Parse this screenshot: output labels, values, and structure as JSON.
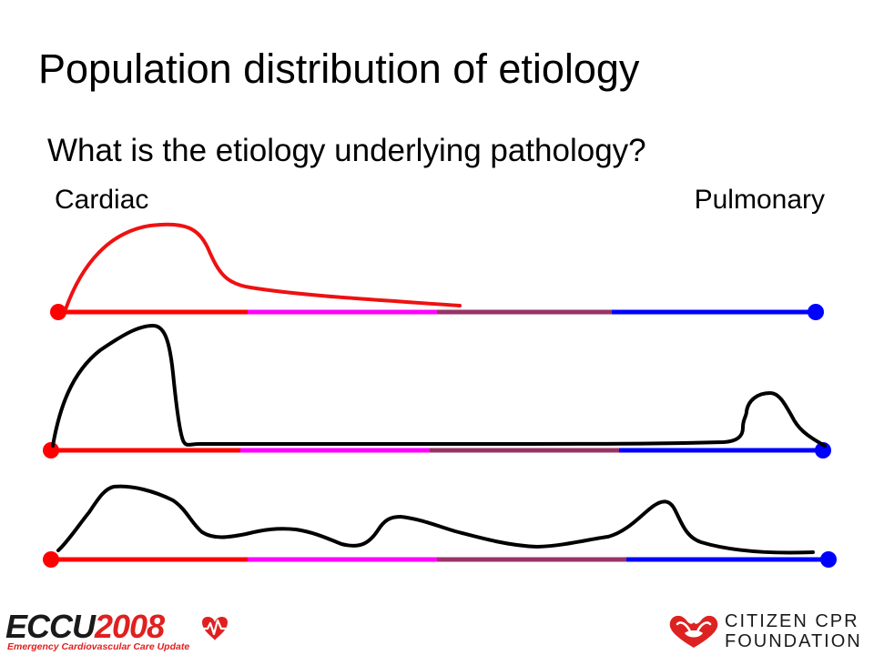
{
  "slide": {
    "title": "Population distribution of etiology",
    "subtitle": "What is the etiology underlying pathology?",
    "left_label": "Cardiac",
    "right_label": "Pulmonary"
  },
  "colors": {
    "cardiac": "#ff0000",
    "segment_2": "#ff00ff",
    "segment_3": "#993366",
    "pulmonary": "#0000ff",
    "top_curve": "#ee1111",
    "curves": "#000000"
  },
  "footer": {
    "ecc_logo": {
      "word": "ECCU",
      "year": "2008",
      "subtitle": "Emergency Cardiovascular Care Update",
      "icon": "heart-ekg-icon"
    },
    "cpr_logo": {
      "line1": "CITIZEN CPR",
      "line2": "FOUNDATION",
      "icon": "hearts-hands-icon"
    }
  }
}
